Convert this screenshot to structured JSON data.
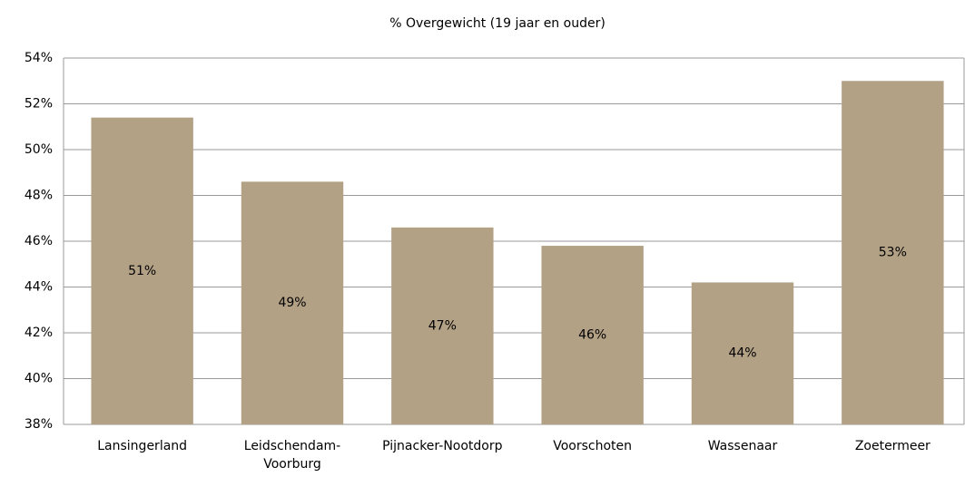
{
  "chart_data": {
    "type": "bar",
    "title": "% Overgewicht (19 jaar en ouder)",
    "categories": [
      "Lansingerland",
      "Leidschendam-Voorburg",
      "Pijnacker-Nootdorp",
      "Voorschoten",
      "Wassenaar",
      "Zoetermeer"
    ],
    "values": [
      51.4,
      48.6,
      46.6,
      45.8,
      44.2,
      53.0
    ],
    "value_labels": [
      "51%",
      "49%",
      "47%",
      "46%",
      "44%",
      "53%"
    ],
    "color": "#b3a186",
    "ylim": [
      38,
      54
    ],
    "yticks": [
      {
        "value": 38,
        "label": "38%"
      },
      {
        "value": 40,
        "label": "40%"
      },
      {
        "value": 42,
        "label": "42%"
      },
      {
        "value": 44,
        "label": "44%"
      },
      {
        "value": 46,
        "label": "46%"
      },
      {
        "value": 48,
        "label": "48%"
      },
      {
        "value": 50,
        "label": "50%"
      },
      {
        "value": 52,
        "label": "52%"
      },
      {
        "value": 54,
        "label": "54%"
      }
    ],
    "grid": true
  }
}
